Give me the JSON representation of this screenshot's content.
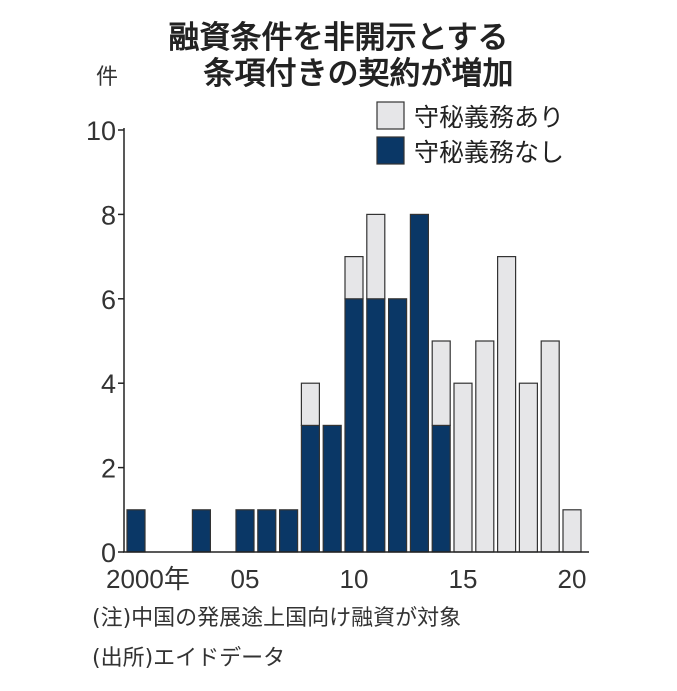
{
  "chart_data": {
    "type": "bar",
    "stacked": true,
    "title": [
      "融資条件を非開示とする",
      "条項付きの契約が増加"
    ],
    "ylabel": "件",
    "ylim": [
      0,
      10
    ],
    "yticks": [
      "0",
      "2",
      "4",
      "6",
      "8",
      "10"
    ],
    "years": [
      2000,
      2001,
      2002,
      2003,
      2004,
      2005,
      2006,
      2007,
      2008,
      2009,
      2010,
      2011,
      2012,
      2013,
      2014,
      2015,
      2016,
      2017,
      2018,
      2019,
      2020
    ],
    "xtick_labels": [
      {
        "year": 2000,
        "label": "2000年"
      },
      {
        "year": 2005,
        "label": "05"
      },
      {
        "year": 2010,
        "label": "10"
      },
      {
        "year": 2015,
        "label": "15"
      },
      {
        "year": 2020,
        "label": "20"
      }
    ],
    "legend_position": "top-right",
    "series": [
      {
        "name": "守秘義務なし",
        "color": "#0a3766",
        "values": [
          1,
          0,
          0,
          1,
          0,
          1,
          1,
          1,
          3,
          3,
          6,
          6,
          6,
          8,
          3,
          0,
          0,
          0,
          0,
          0,
          0
        ]
      },
      {
        "name": "守秘義務あり",
        "color": "#e6e6e8",
        "values": [
          0,
          0,
          0,
          0,
          0,
          0,
          0,
          0,
          1,
          0,
          1,
          2,
          0,
          0,
          2,
          4,
          5,
          7,
          4,
          5,
          1
        ]
      }
    ]
  },
  "notes": [
    "(注)中国の発展途上国向け融資が対象",
    "(出所)エイドデータ"
  ]
}
